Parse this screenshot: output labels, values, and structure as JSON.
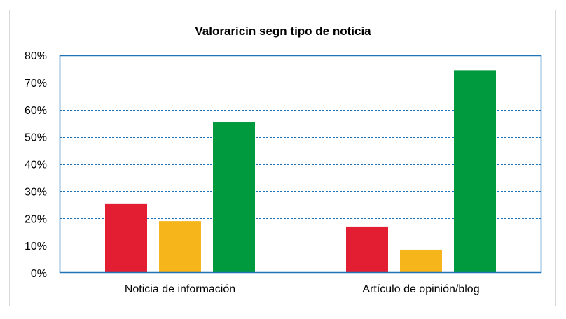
{
  "chart_data": {
    "type": "bar",
    "title": "Valoraricin segn tipo de noticia",
    "categories": [
      "Noticia de información",
      "Artículo de opinión/blog"
    ],
    "series": [
      {
        "color": "#e31e32",
        "values": [
          0.255,
          0.17
        ]
      },
      {
        "color": "#f6b51b",
        "values": [
          0.19,
          0.085
        ]
      },
      {
        "color": "#009a3e",
        "values": [
          0.553,
          0.745
        ]
      }
    ],
    "ylim": [
      0,
      0.8
    ],
    "yticks": [
      0,
      0.1,
      0.2,
      0.3,
      0.4,
      0.5,
      0.6,
      0.7,
      0.8
    ],
    "ytick_labels": [
      "0%",
      "10%",
      "20%",
      "30%",
      "40%",
      "50%",
      "60%",
      "70%",
      "80%"
    ],
    "grid": true,
    "gridline_color": "#1f73b7",
    "axis_color": "#1f73b7",
    "legend": "none"
  }
}
